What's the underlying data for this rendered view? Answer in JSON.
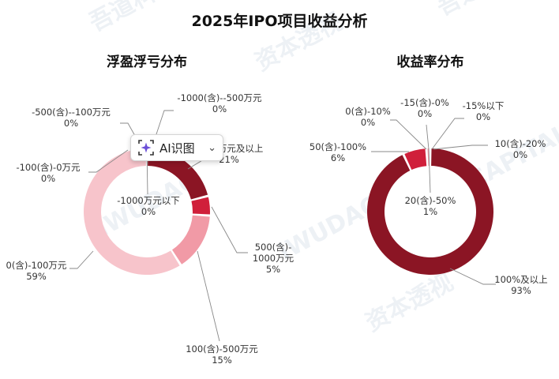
{
  "page": {
    "title": "2025年IPO项目收益分析"
  },
  "colors": {
    "dark_red": "#8b1524",
    "red": "#d01f3a",
    "mid_pink": "#f19aa6",
    "light_pink": "#f7c4cb",
    "leader": "#888888"
  },
  "watermark": {
    "text_cn": "吾道科技",
    "text_en": "iWUDAO",
    "text_cn2": "资本透视",
    "text_en2": "CAPITAL MARKET"
  },
  "ai_button": {
    "label": "AI识图",
    "icon": "sparkle-icon",
    "chevron": "chevron-down-icon"
  },
  "chart_data": [
    {
      "type": "pie",
      "donut": true,
      "title": "浮盈浮亏分布",
      "series": [
        {
          "name": "1000万元及以上",
          "value": 21,
          "label": [
            "1000万元及以上",
            "21%"
          ],
          "color": "#8b1524"
        },
        {
          "name": "500(含)-1000万元",
          "value": 5,
          "label": [
            "500(含)-",
            "1000万元",
            "5%"
          ],
          "color": "#d01f3a"
        },
        {
          "name": "100(含)-500万元",
          "value": 15,
          "label": [
            "100(含)-500万元",
            "15%"
          ],
          "color": "#f19aa6"
        },
        {
          "name": "0(含)-100万元",
          "value": 59,
          "label": [
            "0(含)-100万元",
            "59%"
          ],
          "color": "#f7c4cb"
        },
        {
          "name": "-100(含)-0万元",
          "value": 0,
          "label": [
            "-100(含)-0万元",
            "0%"
          ],
          "color": "#f7c4cb"
        },
        {
          "name": "-500(含)--100万元",
          "value": 0,
          "label": [
            "-500(含)--100万元",
            "0%"
          ],
          "color": "#f7c4cb"
        },
        {
          "name": "-1000(含)--500万元",
          "value": 0,
          "label": [
            "-1000(含)--500万元",
            "0%"
          ],
          "color": "#f7c4cb"
        },
        {
          "name": "-1000万元以下",
          "value": 0,
          "label": [
            "-1000万元以下",
            "0%"
          ],
          "color": "#f7c4cb"
        }
      ]
    },
    {
      "type": "pie",
      "donut": true,
      "title": "收益率分布",
      "series": [
        {
          "name": "100%及以上",
          "value": 93,
          "label": [
            "100%及以上",
            "93%"
          ],
          "color": "#8b1524"
        },
        {
          "name": "50(含)-100%",
          "value": 6,
          "label": [
            "50(含)-100%",
            "6%"
          ],
          "color": "#d01f3a"
        },
        {
          "name": "20(含)-50%",
          "value": 1,
          "label": [
            "20(含)-50%",
            "1%"
          ],
          "color": "#f19aa6"
        },
        {
          "name": "10(含)-20%",
          "value": 0,
          "label": [
            "10(含)-20%",
            "0%"
          ],
          "color": "#f7c4cb"
        },
        {
          "name": "0(含)-10%",
          "value": 0,
          "label": [
            "0(含)-10%",
            "0%"
          ],
          "color": "#f7c4cb"
        },
        {
          "name": "-15(含)-0%",
          "value": 0,
          "label": [
            "-15(含)-0%",
            "0%"
          ],
          "color": "#f7c4cb"
        },
        {
          "name": "-15%以下",
          "value": 0,
          "label": [
            "-15%以下",
            "0%"
          ],
          "color": "#f7c4cb"
        }
      ]
    }
  ]
}
